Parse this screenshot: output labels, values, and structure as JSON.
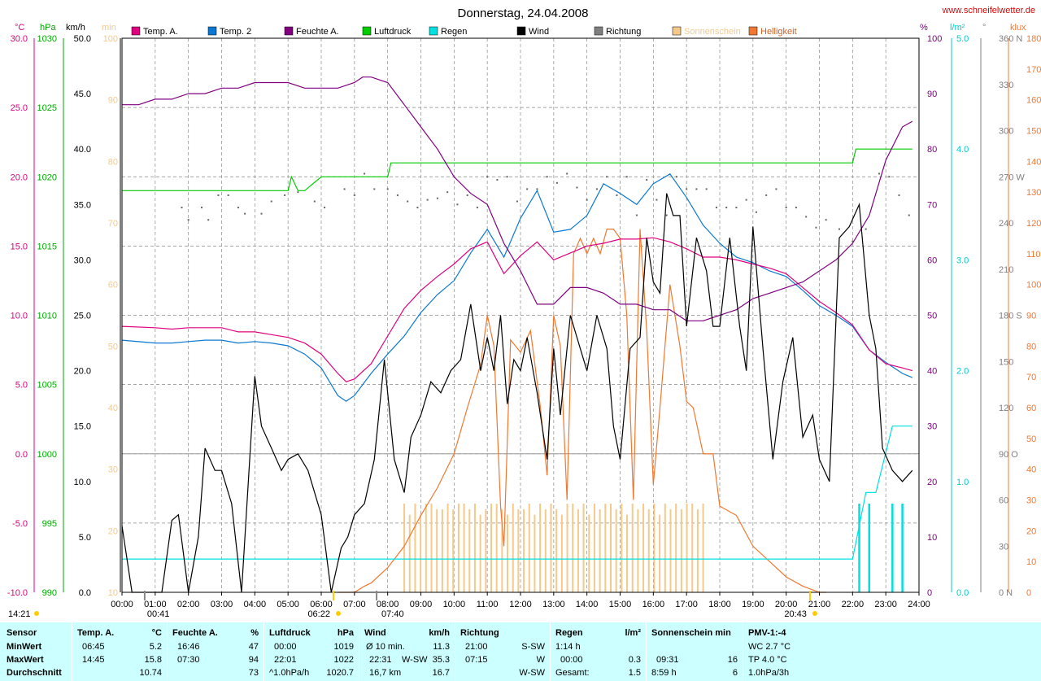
{
  "title": "Donnerstag, 24.04.2008",
  "site": "www.schneifelwetter.de",
  "legend": [
    {
      "label": "Temp. A.",
      "color": "#e0007f"
    },
    {
      "label": "Temp. 2",
      "color": "#0a78d2"
    },
    {
      "label": "Feuchte A.",
      "color": "#800080"
    },
    {
      "label": "Luftdruck",
      "color": "#00cc00"
    },
    {
      "label": "Regen",
      "color": "#00e0e0"
    },
    {
      "label": "Wind",
      "color": "#000000"
    },
    {
      "label": "Richtung",
      "color": "#808080"
    },
    {
      "label": "Sonnenschein",
      "color": "#f5c98a"
    },
    {
      "label": "Helligkeit",
      "color": "#f07830"
    }
  ],
  "sun_events": {
    "sunrise": "06:22",
    "sunset": "20:43",
    "left_time": "14:21",
    "t0041": "00:41",
    "t0740": "07:40"
  },
  "chart_data": {
    "type": "line",
    "x_range": [
      "00:00",
      "24:00"
    ],
    "x_ticks": [
      "00:00",
      "01:00",
      "02:00",
      "03:00",
      "04:00",
      "05:00",
      "06:00",
      "07:00",
      "08:00",
      "09:00",
      "10:00",
      "11:00",
      "12:00",
      "13:00",
      "14:00",
      "15:00",
      "16:00",
      "17:00",
      "18:00",
      "19:00",
      "20:00",
      "21:00",
      "22:00",
      "23:00",
      "24:00"
    ],
    "axes": [
      {
        "unit": "°C",
        "range": [
          -10,
          30
        ],
        "ticks": [
          "30.0",
          "25.0",
          "20.0",
          "15.0",
          "10.0",
          "5.0",
          "0.0",
          "-5.0",
          "-10.0"
        ],
        "color": "#e0007f"
      },
      {
        "unit": "hPa",
        "range": [
          990,
          1030
        ],
        "ticks": [
          "1030",
          "1025",
          "1020",
          "1015",
          "1010",
          "1005",
          "1000",
          "995",
          "990"
        ],
        "color": "#00aa00"
      },
      {
        "unit": "km/h",
        "range": [
          0,
          50
        ],
        "ticks": [
          "50.0",
          "45.0",
          "40.0",
          "35.0",
          "30.0",
          "25.0",
          "20.0",
          "15.0",
          "10.0",
          "5.0",
          "0.0"
        ],
        "color": "#000000"
      },
      {
        "unit": "min",
        "range": [
          0,
          100
        ],
        "ticks": [
          "100",
          "90",
          "80",
          "70",
          "60",
          "50",
          "40",
          "30",
          "20",
          "10"
        ],
        "color": "#f5c98a"
      },
      {
        "unit": "%",
        "range": [
          0,
          100
        ],
        "ticks": [
          "100",
          "90",
          "80",
          "70",
          "60",
          "50",
          "40",
          "30",
          "20",
          "10",
          "0"
        ],
        "color": "#800080"
      },
      {
        "unit": "l/m²",
        "range": [
          0,
          5
        ],
        "ticks": [
          "5.0",
          "4.0",
          "3.0",
          "2.0",
          "1.0",
          "0.0"
        ],
        "color": "#00cccc"
      },
      {
        "unit": "°",
        "range": [
          0,
          360
        ],
        "ticks": [
          "360 N",
          "330",
          "300",
          "270 W",
          "240",
          "210",
          "180 S",
          "150",
          "120",
          "90 O",
          "60",
          "30",
          "0 N"
        ],
        "color": "#808080"
      },
      {
        "unit": "klux",
        "range": [
          0,
          180
        ],
        "ticks": [
          "180",
          "170",
          "160",
          "150",
          "140",
          "130",
          "120",
          "110",
          "100",
          "90",
          "80",
          "70",
          "60",
          "50",
          "40",
          "30",
          "20",
          "10",
          "0"
        ],
        "color": "#f07830"
      }
    ],
    "series": [
      {
        "name": "Temp. A.",
        "unit": "°C",
        "x": [
          0,
          1,
          1.5,
          2,
          2.5,
          3,
          3.5,
          4,
          4.5,
          5,
          5.5,
          6,
          6.5,
          6.75,
          7,
          7.5,
          8,
          8.5,
          9,
          9.5,
          10,
          10.5,
          11,
          11.5,
          12,
          12.5,
          13,
          13.5,
          14,
          14.5,
          15,
          15.5,
          16,
          16.5,
          17,
          17.5,
          18,
          18.5,
          19,
          19.5,
          20,
          20.5,
          21,
          21.5,
          22,
          22.5,
          23,
          23.5,
          23.8
        ],
        "y": [
          9.2,
          9.1,
          9.0,
          9.1,
          9.1,
          9.1,
          8.8,
          8.8,
          8.6,
          8.4,
          8.0,
          7.2,
          5.8,
          5.2,
          5.4,
          6.5,
          8.5,
          10.5,
          11.8,
          12.8,
          13.7,
          14.8,
          15.3,
          13.0,
          14.3,
          15.3,
          14.0,
          14.5,
          15.0,
          15.2,
          15.5,
          15.5,
          15.6,
          15.3,
          14.8,
          14.2,
          14.2,
          14.0,
          13.7,
          13.4,
          13.0,
          12.0,
          11.0,
          10.2,
          9.3,
          7.5,
          6.5,
          6.2,
          6.0
        ]
      },
      {
        "name": "Temp. 2",
        "unit": "°C",
        "x": [
          0,
          1,
          1.5,
          2,
          2.5,
          3,
          3.5,
          4,
          4.5,
          5,
          5.5,
          6,
          6.5,
          6.75,
          7,
          7.5,
          8,
          8.5,
          9,
          9.5,
          10,
          10.5,
          11,
          11.5,
          12,
          12.5,
          13,
          13.5,
          14,
          14.5,
          15,
          15.5,
          16,
          16.5,
          17,
          17.5,
          18,
          18.5,
          19,
          19.5,
          20,
          20.5,
          21,
          21.5,
          22,
          22.5,
          23,
          23.5,
          23.8
        ],
        "y": [
          8.2,
          8.0,
          8.0,
          8.1,
          8.2,
          8.2,
          8.0,
          8.1,
          8.0,
          7.8,
          7.2,
          6.2,
          4.2,
          3.8,
          4.2,
          5.8,
          7.2,
          8.5,
          10.2,
          11.5,
          12.5,
          14.5,
          16.2,
          14.2,
          17.0,
          19.0,
          16.0,
          16.2,
          17.2,
          19.5,
          18.8,
          18.0,
          19.5,
          20.2,
          18.5,
          16.5,
          15.2,
          14.2,
          13.8,
          13.2,
          12.8,
          11.8,
          10.7,
          10.0,
          9.2,
          7.5,
          6.6,
          5.8,
          5.5
        ]
      },
      {
        "name": "Feuchte A.",
        "unit": "%",
        "x": [
          0,
          0.5,
          1,
          1.5,
          2,
          2.5,
          3,
          3.5,
          4,
          4.5,
          5,
          5.5,
          6,
          6.5,
          7,
          7.25,
          7.5,
          8,
          8.5,
          9,
          9.5,
          10,
          10.5,
          11,
          11.5,
          12,
          12.5,
          13,
          13.5,
          14,
          14.5,
          15,
          15.5,
          16,
          16.5,
          17,
          17.5,
          18,
          18.5,
          19,
          19.5,
          20,
          20.5,
          21,
          21.5,
          22,
          22.5,
          23,
          23.5,
          23.8
        ],
        "y": [
          88,
          88,
          89,
          89,
          90,
          90,
          91,
          91,
          92,
          92,
          92,
          91,
          91,
          91,
          92,
          93,
          93,
          92,
          88,
          84,
          80,
          75,
          72,
          70,
          63,
          58,
          52,
          52,
          55,
          55,
          54,
          52,
          52,
          51,
          51,
          49,
          49,
          50,
          51,
          53,
          54,
          55,
          56,
          58,
          60,
          63,
          68,
          78,
          84,
          85
        ]
      },
      {
        "name": "Luftdruck",
        "unit": "hPa",
        "x": [
          0,
          1,
          2,
          3,
          4,
          4.5,
          5,
          5.1,
          5.3,
          5.5,
          6,
          7,
          8,
          8.1,
          9,
          10,
          11,
          12,
          13,
          14,
          15,
          16,
          17,
          18,
          19,
          20,
          21,
          22,
          22.1,
          23,
          23.8
        ],
        "y": [
          1019,
          1019,
          1019,
          1019,
          1019,
          1019,
          1019,
          1020,
          1019,
          1019,
          1020,
          1020,
          1020,
          1021,
          1021,
          1021,
          1021,
          1021,
          1021,
          1021,
          1021,
          1021,
          1021,
          1021,
          1021,
          1021,
          1021,
          1021,
          1022,
          1022,
          1022
        ]
      },
      {
        "name": "Wind",
        "unit": "km/h",
        "x": [
          0,
          0.3,
          0.6,
          1.2,
          1.5,
          1.7,
          2.0,
          2.3,
          2.5,
          2.8,
          3.0,
          3.3,
          3.6,
          4.0,
          4.2,
          4.5,
          4.8,
          5.0,
          5.3,
          5.6,
          6.0,
          6.3,
          6.6,
          6.8,
          7.0,
          7.3,
          7.6,
          7.9,
          8.2,
          8.5,
          8.7,
          9.0,
          9.3,
          9.6,
          9.9,
          10.2,
          10.5,
          10.8,
          11.0,
          11.2,
          11.4,
          11.6,
          11.8,
          12.0,
          12.2,
          12.5,
          12.8,
          13.0,
          13.2,
          13.5,
          13.8,
          14.0,
          14.3,
          14.6,
          14.8,
          15.0,
          15.3,
          15.6,
          15.8,
          16.0,
          16.2,
          16.4,
          16.6,
          16.8,
          17.0,
          17.3,
          17.6,
          17.8,
          18.0,
          18.3,
          18.6,
          18.8,
          19.0,
          19.3,
          19.6,
          19.9,
          20.2,
          20.5,
          20.8,
          21.0,
          21.3,
          21.6,
          21.9,
          22.2,
          22.5,
          22.7,
          22.9,
          23.2,
          23.5,
          23.8
        ],
        "y": [
          6,
          0,
          0,
          0,
          6.5,
          7,
          0,
          5,
          13,
          11,
          11,
          8,
          0,
          19.5,
          15,
          13,
          11,
          12,
          12.5,
          11,
          7,
          0,
          4,
          5,
          7,
          8,
          12,
          21,
          12,
          9,
          14,
          16,
          19,
          18,
          20,
          21,
          26,
          20,
          23,
          20,
          25,
          17,
          21,
          20,
          23,
          18,
          12,
          22,
          16,
          25,
          22,
          20,
          25,
          22,
          15,
          12,
          22,
          23,
          32,
          28,
          27,
          36,
          34,
          34,
          24,
          32,
          29,
          24,
          24,
          32,
          24,
          20,
          33,
          22,
          12,
          19,
          23,
          14,
          16,
          12,
          10,
          32,
          33,
          35,
          25,
          22,
          13,
          11,
          10,
          11
        ]
      },
      {
        "name": "Regen",
        "unit": "l/m²",
        "x": [
          0,
          22.0,
          22.4,
          22.7,
          23.2,
          23.5,
          23.8
        ],
        "y": [
          0.3,
          0.3,
          0.9,
          0.9,
          1.5,
          1.5,
          1.5
        ]
      },
      {
        "name": "Helligkeit",
        "unit": "klux",
        "x": [
          6.5,
          7.0,
          7.3,
          7.5,
          8.0,
          8.5,
          9.0,
          9.5,
          10.0,
          10.4,
          10.8,
          11.0,
          11.2,
          11.4,
          11.5,
          11.7,
          12.0,
          12.3,
          12.6,
          12.8,
          13.0,
          13.2,
          13.4,
          13.6,
          13.8,
          14.0,
          14.2,
          14.4,
          14.6,
          14.8,
          15.0,
          15.2,
          15.4,
          15.6,
          15.8,
          16.0,
          16.2,
          16.5,
          16.8,
          17.0,
          17.2,
          17.5,
          17.8,
          18.0,
          18.5,
          19.0,
          19.5,
          20.0,
          20.5,
          21.0,
          21.2
        ],
        "y": [
          0,
          0,
          2,
          3,
          8,
          15,
          25,
          34,
          45,
          60,
          74,
          90,
          80,
          28,
          15,
          82,
          78,
          85,
          60,
          38,
          90,
          80,
          30,
          110,
          115,
          110,
          115,
          110,
          118,
          118,
          115,
          90,
          30,
          118,
          85,
          35,
          60,
          100,
          80,
          62,
          60,
          45,
          45,
          28,
          25,
          15,
          10,
          5,
          2,
          0,
          0
        ]
      },
      {
        "name": "Sonnenschein",
        "unit": "min",
        "x_range": [
          "08:30",
          "17:30"
        ],
        "y": [
          16,
          14,
          16,
          14,
          16,
          16,
          15,
          15,
          16,
          15,
          16,
          16,
          15,
          16,
          14,
          15,
          16,
          16,
          15,
          14,
          16,
          15,
          15,
          16,
          14,
          16,
          15,
          16,
          15,
          14,
          16,
          16,
          15,
          16,
          14,
          16,
          15,
          16,
          16,
          15,
          16,
          14,
          16,
          15,
          16,
          15,
          16,
          14,
          16,
          15,
          16,
          15,
          16,
          16,
          15,
          16
        ]
      }
    ],
    "direction_points": {
      "unit": "°",
      "x": [
        1.8,
        2.0,
        2.4,
        2.6,
        2.9,
        3.2,
        3.5,
        3.7,
        4.2,
        4.5,
        4.9,
        5.3,
        5.8,
        6.1,
        6.7,
        7.0,
        7.3,
        7.6,
        8.0,
        8.3,
        8.6,
        8.9,
        9.2,
        9.5,
        9.8,
        10.1,
        10.4,
        10.7,
        11.0,
        11.3,
        11.6,
        11.9,
        12.2,
        12.5,
        12.8,
        13.1,
        13.4,
        13.7,
        14.0,
        14.3,
        14.6,
        14.9,
        15.2,
        15.5,
        15.8,
        16.1,
        16.4,
        16.7,
        17.0,
        17.3,
        17.6,
        17.9,
        18.2,
        18.5,
        18.8,
        19.1,
        19.4,
        19.7,
        20.0,
        20.3,
        20.6,
        20.9,
        21.2,
        21.6,
        22.0,
        22.4,
        22.8,
        23.1,
        23.4,
        23.7
      ],
      "y": [
        250,
        242,
        250,
        242,
        258,
        258,
        250,
        246,
        246,
        254,
        258,
        260,
        254,
        250,
        262,
        258,
        272,
        262,
        262,
        258,
        254,
        250,
        255,
        256,
        260,
        252,
        258,
        250,
        270,
        268,
        270,
        254,
        262,
        262,
        270,
        266,
        272,
        263,
        255,
        262,
        270,
        258,
        270,
        245,
        268,
        255,
        245,
        270,
        262,
        262,
        262,
        250,
        250,
        250,
        255,
        247,
        258,
        262,
        250,
        250,
        244,
        237,
        242,
        236,
        228,
        236,
        272,
        270,
        258,
        245
      ]
    }
  },
  "stats": {
    "sensor_header": "Sensor",
    "rows": [
      "MinWert",
      "MaxWert",
      "Durchschnitt"
    ],
    "temp": {
      "header": "Temp. A.",
      "unit": "°C",
      "min_time": "06:45",
      "min": "5.2",
      "max_time": "14:45",
      "max": "15.8",
      "avg": "10.74"
    },
    "humidity": {
      "header": "Feuchte A.",
      "unit": "%",
      "min_time": "16:46",
      "min": "47",
      "max_time": "07:30",
      "max": "94",
      "avg": "73"
    },
    "pressure": {
      "header": "Luftdruck",
      "unit": "hPa",
      "min_time": "00:00",
      "min": "1019",
      "max_time": "22:01",
      "max": "1022",
      "trend": "^1.0hPa/h",
      "avg": "1020.7"
    },
    "wind": {
      "header": "Wind",
      "unit": "km/h",
      "min_label": "Ø 10 min.",
      "min": "11.3",
      "max_time": "22:31",
      "max_dir": "W-SW",
      "max": "35.3",
      "dist": "16,7 km",
      "avg": "16.7"
    },
    "direction": {
      "header": "Richtung",
      "min_time": "21:00",
      "min": "S-SW",
      "max_time": "07:15",
      "max": "W",
      "avg": "W-SW"
    },
    "rain": {
      "header": "Regen",
      "unit": "l/m²",
      "dur": "1:14 h",
      "max_time": "00:00",
      "max": "0.3",
      "total_label": "Gesamt:",
      "total": "1.5"
    },
    "sun": {
      "header": "Sonnenschein min",
      "max_time": "09:31",
      "max": "16",
      "total": "8:59 h",
      "avg": "6"
    },
    "pmv": {
      "header": "PMV-1:-4",
      "wc": "WC 2.7 °C",
      "tp": "TP 4.0 °C",
      "trend": "1.0hPa/3h"
    }
  }
}
